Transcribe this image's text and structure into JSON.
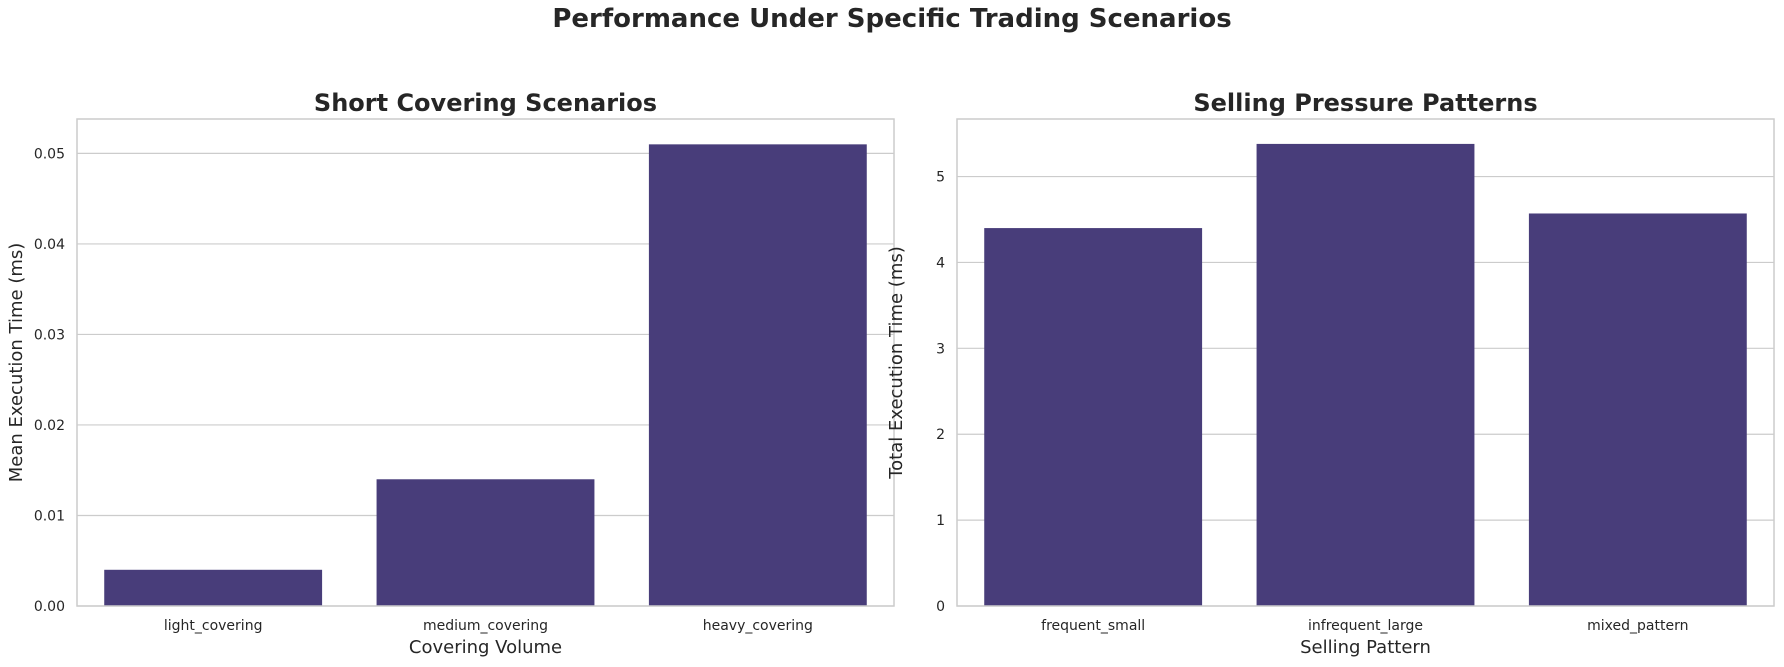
{
  "figure_title": "Performance Under Specific Trading Scenarios",
  "chart_data": [
    {
      "type": "bar",
      "title": "Short Covering Scenarios",
      "xlabel": "Covering Volume",
      "ylabel": "Mean Execution Time (ms)",
      "categories": [
        "light_covering",
        "medium_covering",
        "heavy_covering"
      ],
      "values": [
        0.004,
        0.014,
        0.051
      ],
      "ylim": [
        0,
        0.0538
      ],
      "yticks": [
        0.0,
        0.01,
        0.02,
        0.03,
        0.04,
        0.05
      ],
      "ytick_labels": [
        "0.00",
        "0.01",
        "0.02",
        "0.03",
        "0.04",
        "0.05"
      ],
      "bar_color": "#483d7a",
      "grid": true
    },
    {
      "type": "bar",
      "title": "Selling Pressure Patterns",
      "xlabel": "Selling Pattern",
      "ylabel": "Total Execution Time (ms)",
      "categories": [
        "frequent_small",
        "infrequent_large",
        "mixed_pattern"
      ],
      "values": [
        4.4,
        5.38,
        4.57
      ],
      "ylim": [
        0,
        5.67
      ],
      "yticks": [
        0,
        1,
        2,
        3,
        4,
        5
      ],
      "ytick_labels": [
        "0",
        "1",
        "2",
        "3",
        "4",
        "5"
      ],
      "bar_color": "#483d7a",
      "grid": true
    }
  ]
}
